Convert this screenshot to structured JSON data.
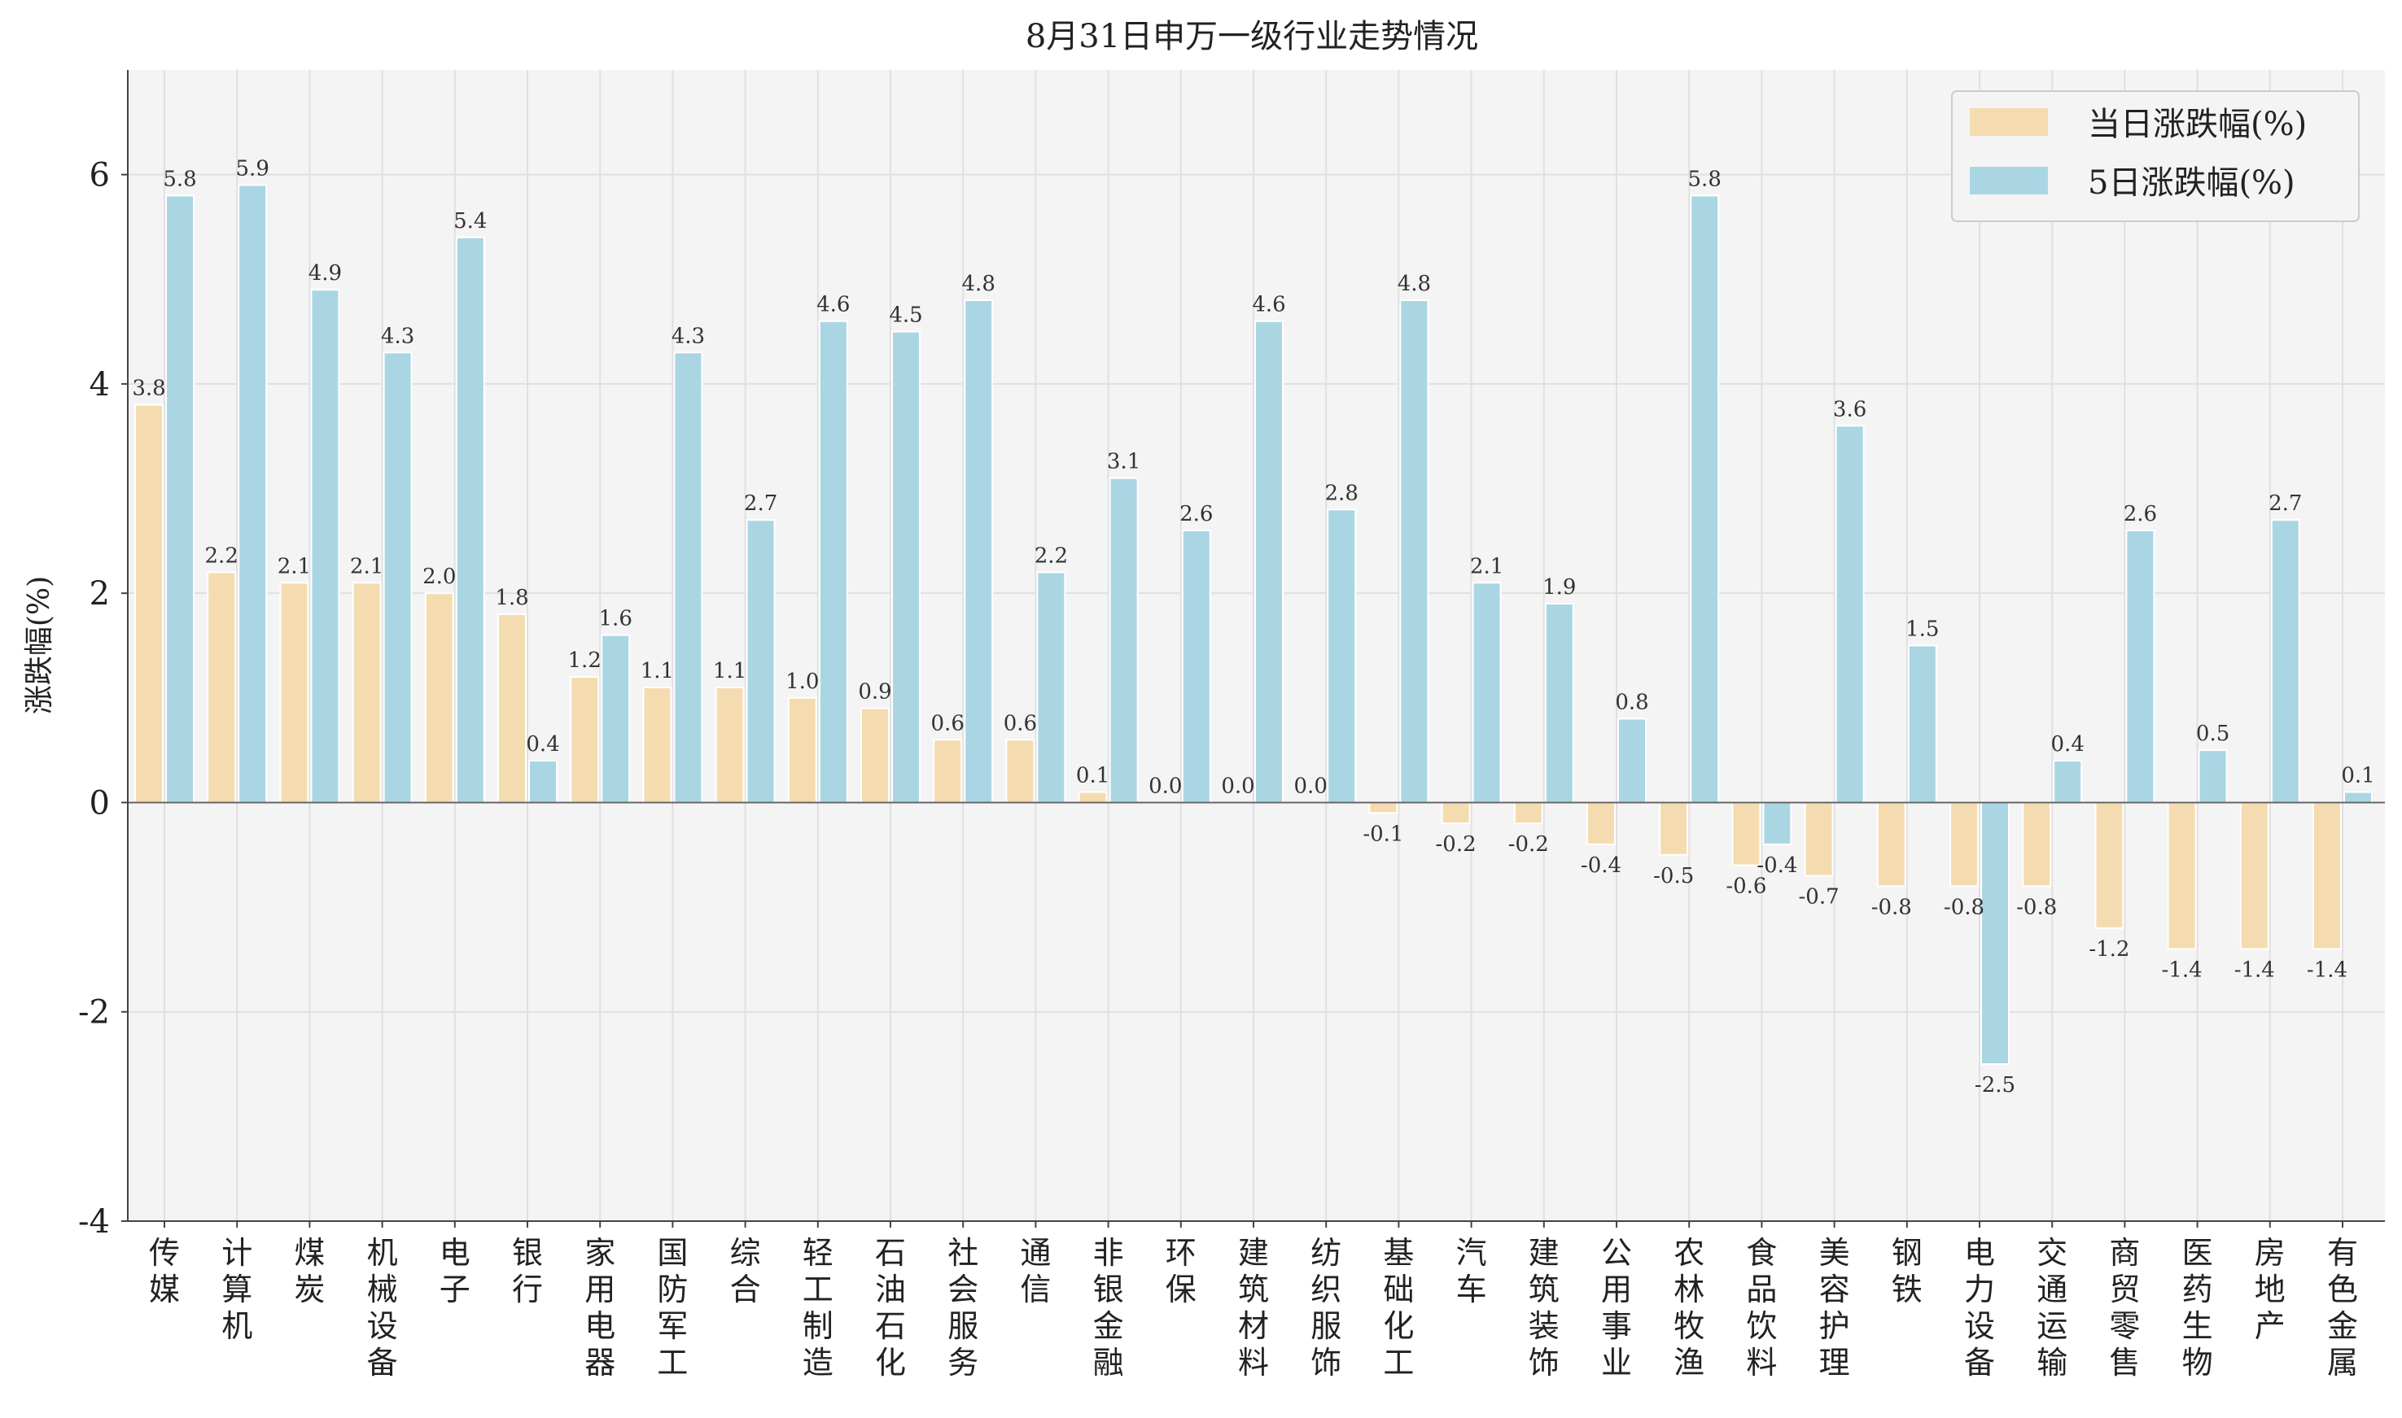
{
  "chart_data": {
    "type": "bar",
    "title": "8月31日申万一级行业走势情况",
    "xlabel": "",
    "ylabel": "涨跌幅(%)",
    "ylim": [
      -4,
      7
    ],
    "yticks": [
      -4,
      -2,
      0,
      2,
      4,
      6
    ],
    "grid": true,
    "legend_position": "top-right",
    "categories": [
      "传媒",
      "计算机",
      "煤炭",
      "机械设备",
      "电子",
      "银行",
      "家用电器",
      "国防军工",
      "综合",
      "轻工制造",
      "石油石化",
      "社会服务",
      "通信",
      "非银金融",
      "环保",
      "建筑材料",
      "纺织服饰",
      "基础化工",
      "汽车",
      "建筑装饰",
      "公用事业",
      "农林牧渔",
      "食品饮料",
      "美容护理",
      "钢铁",
      "电力设备",
      "交通运输",
      "商贸零售",
      "医药生物",
      "房地产",
      "有色金属"
    ],
    "series": [
      {
        "name": "当日涨跌幅(%)",
        "color": "#f5dcb0",
        "values": [
          3.8,
          2.2,
          2.1,
          2.1,
          2.0,
          1.8,
          1.2,
          1.1,
          1.1,
          1.0,
          0.9,
          0.6,
          0.6,
          0.1,
          0.0,
          0.0,
          0.0,
          -0.1,
          -0.2,
          -0.2,
          -0.4,
          -0.5,
          -0.6,
          -0.7,
          -0.8,
          -0.8,
          -0.8,
          -1.2,
          -1.4,
          -1.4,
          -1.4
        ]
      },
      {
        "name": "5日涨跌幅(%)",
        "color": "#aad6e4",
        "values": [
          5.8,
          5.9,
          4.9,
          4.3,
          5.4,
          0.4,
          1.6,
          4.3,
          2.7,
          4.6,
          4.5,
          4.8,
          2.2,
          3.1,
          2.6,
          4.6,
          2.8,
          4.8,
          2.1,
          1.9,
          0.8,
          5.8,
          -0.4,
          3.6,
          1.5,
          -2.5,
          0.4,
          2.6,
          0.5,
          2.7,
          0.1
        ]
      }
    ]
  },
  "colors": {
    "plot_bg": "#f4f4f4",
    "grid": "#e2e2e2",
    "axis": "#555555"
  }
}
